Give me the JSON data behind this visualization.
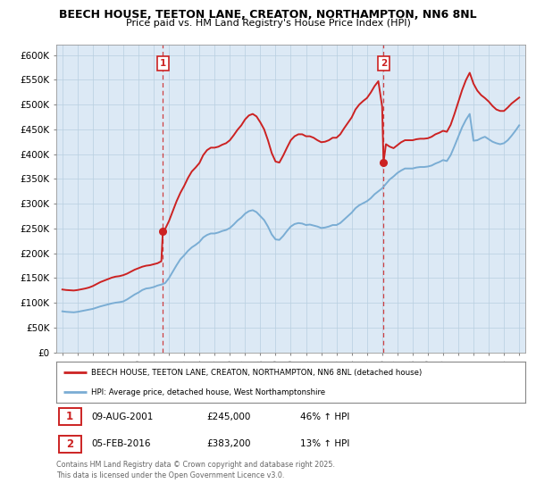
{
  "title": "BEECH HOUSE, TEETON LANE, CREATON, NORTHAMPTON, NN6 8NL",
  "subtitle": "Price paid vs. HM Land Registry's House Price Index (HPI)",
  "background_color": "#ffffff",
  "chart_bg_color": "#dce9f5",
  "grid_color": "#b8cfe0",
  "hpi_color": "#7aadd4",
  "price_color": "#cc2222",
  "ylim": [
    0,
    620000
  ],
  "ytick_step": 50000,
  "xlim_left": 1994.6,
  "xlim_right": 2025.4,
  "purchase1_date": "09-AUG-2001",
  "purchase1_price": 245000,
  "purchase1_x": 2001.6,
  "purchase1_pct": "46%",
  "purchase2_date": "05-FEB-2016",
  "purchase2_price": 383200,
  "purchase2_x": 2016.09,
  "purchase2_pct": "13%",
  "legend_line1": "BEECH HOUSE, TEETON LANE, CREATON, NORTHAMPTON, NN6 8NL (detached house)",
  "legend_line2": "HPI: Average price, detached house, West Northamptonshire",
  "footnote": "Contains HM Land Registry data © Crown copyright and database right 2025.\nThis data is licensed under the Open Government Licence v3.0.",
  "hpi_data": [
    [
      1995.0,
      83000
    ],
    [
      1995.25,
      82000
    ],
    [
      1995.5,
      81500
    ],
    [
      1995.75,
      81000
    ],
    [
      1996.0,
      82000
    ],
    [
      1996.25,
      83500
    ],
    [
      1996.5,
      85000
    ],
    [
      1996.75,
      86500
    ],
    [
      1997.0,
      88000
    ],
    [
      1997.25,
      90500
    ],
    [
      1997.5,
      93000
    ],
    [
      1997.75,
      95000
    ],
    [
      1998.0,
      97000
    ],
    [
      1998.25,
      99000
    ],
    [
      1998.5,
      100500
    ],
    [
      1998.75,
      101500
    ],
    [
      1999.0,
      103000
    ],
    [
      1999.25,
      107000
    ],
    [
      1999.5,
      112000
    ],
    [
      1999.75,
      117000
    ],
    [
      2000.0,
      121000
    ],
    [
      2000.25,
      126000
    ],
    [
      2000.5,
      129000
    ],
    [
      2000.75,
      130000
    ],
    [
      2001.0,
      132000
    ],
    [
      2001.25,
      135000
    ],
    [
      2001.5,
      137000
    ],
    [
      2001.75,
      140000
    ],
    [
      2002.0,
      150000
    ],
    [
      2002.25,
      163000
    ],
    [
      2002.5,
      176000
    ],
    [
      2002.75,
      188000
    ],
    [
      2003.0,
      196000
    ],
    [
      2003.25,
      205000
    ],
    [
      2003.5,
      212000
    ],
    [
      2003.75,
      217000
    ],
    [
      2004.0,
      223000
    ],
    [
      2004.25,
      232000
    ],
    [
      2004.5,
      237000
    ],
    [
      2004.75,
      240000
    ],
    [
      2005.0,
      240000
    ],
    [
      2005.25,
      242000
    ],
    [
      2005.5,
      245000
    ],
    [
      2005.75,
      247000
    ],
    [
      2006.0,
      251000
    ],
    [
      2006.25,
      258000
    ],
    [
      2006.5,
      266000
    ],
    [
      2006.75,
      272000
    ],
    [
      2007.0,
      280000
    ],
    [
      2007.25,
      285000
    ],
    [
      2007.5,
      287000
    ],
    [
      2007.75,
      283000
    ],
    [
      2008.0,
      275000
    ],
    [
      2008.25,
      267000
    ],
    [
      2008.5,
      254000
    ],
    [
      2008.75,
      238000
    ],
    [
      2009.0,
      228000
    ],
    [
      2009.25,
      227000
    ],
    [
      2009.5,
      235000
    ],
    [
      2009.75,
      245000
    ],
    [
      2010.0,
      254000
    ],
    [
      2010.25,
      259000
    ],
    [
      2010.5,
      261000
    ],
    [
      2010.75,
      260000
    ],
    [
      2011.0,
      257000
    ],
    [
      2011.25,
      258000
    ],
    [
      2011.5,
      256000
    ],
    [
      2011.75,
      254000
    ],
    [
      2012.0,
      251000
    ],
    [
      2012.25,
      252000
    ],
    [
      2012.5,
      254000
    ],
    [
      2012.75,
      257000
    ],
    [
      2013.0,
      257000
    ],
    [
      2013.25,
      261000
    ],
    [
      2013.5,
      268000
    ],
    [
      2013.75,
      275000
    ],
    [
      2014.0,
      282000
    ],
    [
      2014.25,
      291000
    ],
    [
      2014.5,
      297000
    ],
    [
      2014.75,
      301000
    ],
    [
      2015.0,
      305000
    ],
    [
      2015.25,
      311000
    ],
    [
      2015.5,
      319000
    ],
    [
      2015.75,
      325000
    ],
    [
      2016.0,
      331000
    ],
    [
      2016.25,
      340000
    ],
    [
      2016.5,
      349000
    ],
    [
      2016.75,
      355000
    ],
    [
      2017.0,
      362000
    ],
    [
      2017.25,
      367000
    ],
    [
      2017.5,
      371000
    ],
    [
      2017.75,
      371000
    ],
    [
      2018.0,
      371000
    ],
    [
      2018.25,
      373000
    ],
    [
      2018.5,
      374000
    ],
    [
      2018.75,
      374000
    ],
    [
      2019.0,
      375000
    ],
    [
      2019.25,
      377000
    ],
    [
      2019.5,
      381000
    ],
    [
      2019.75,
      384000
    ],
    [
      2020.0,
      388000
    ],
    [
      2020.25,
      386000
    ],
    [
      2020.5,
      398000
    ],
    [
      2020.75,
      416000
    ],
    [
      2021.0,
      435000
    ],
    [
      2021.25,
      454000
    ],
    [
      2021.5,
      469000
    ],
    [
      2021.75,
      481000
    ],
    [
      2022.0,
      427000
    ],
    [
      2022.25,
      428000
    ],
    [
      2022.5,
      432000
    ],
    [
      2022.75,
      435000
    ],
    [
      2023.0,
      430000
    ],
    [
      2023.25,
      425000
    ],
    [
      2023.5,
      422000
    ],
    [
      2023.75,
      420000
    ],
    [
      2024.0,
      422000
    ],
    [
      2024.25,
      428000
    ],
    [
      2024.5,
      437000
    ],
    [
      2024.75,
      447000
    ],
    [
      2025.0,
      458000
    ]
  ],
  "price_data": [
    [
      1995.0,
      127000
    ],
    [
      1995.25,
      126000
    ],
    [
      1995.5,
      125500
    ],
    [
      1995.75,
      125000
    ],
    [
      1996.0,
      126000
    ],
    [
      1996.25,
      127500
    ],
    [
      1996.5,
      129000
    ],
    [
      1996.75,
      131000
    ],
    [
      1997.0,
      134000
    ],
    [
      1997.25,
      138000
    ],
    [
      1997.5,
      142000
    ],
    [
      1997.75,
      145000
    ],
    [
      1998.0,
      148000
    ],
    [
      1998.25,
      151000
    ],
    [
      1998.5,
      153000
    ],
    [
      1998.75,
      154000
    ],
    [
      1999.0,
      156000
    ],
    [
      1999.25,
      159000
    ],
    [
      1999.5,
      163000
    ],
    [
      1999.75,
      167000
    ],
    [
      2000.0,
      170000
    ],
    [
      2000.25,
      173000
    ],
    [
      2000.5,
      175000
    ],
    [
      2000.75,
      176000
    ],
    [
      2001.0,
      178000
    ],
    [
      2001.25,
      180000
    ],
    [
      2001.5,
      184000
    ],
    [
      2001.6,
      245000
    ],
    [
      2001.75,
      249000
    ],
    [
      2002.0,
      265000
    ],
    [
      2002.25,
      285000
    ],
    [
      2002.5,
      305000
    ],
    [
      2002.75,
      322000
    ],
    [
      2003.0,
      336000
    ],
    [
      2003.25,
      352000
    ],
    [
      2003.5,
      365000
    ],
    [
      2003.75,
      373000
    ],
    [
      2004.0,
      382000
    ],
    [
      2004.25,
      398000
    ],
    [
      2004.5,
      408000
    ],
    [
      2004.75,
      413000
    ],
    [
      2005.0,
      413000
    ],
    [
      2005.25,
      415000
    ],
    [
      2005.5,
      419000
    ],
    [
      2005.75,
      422000
    ],
    [
      2006.0,
      428000
    ],
    [
      2006.25,
      438000
    ],
    [
      2006.5,
      449000
    ],
    [
      2006.75,
      458000
    ],
    [
      2007.0,
      470000
    ],
    [
      2007.25,
      478000
    ],
    [
      2007.5,
      481000
    ],
    [
      2007.75,
      476000
    ],
    [
      2008.0,
      464000
    ],
    [
      2008.25,
      450000
    ],
    [
      2008.5,
      428000
    ],
    [
      2008.75,
      402000
    ],
    [
      2009.0,
      385000
    ],
    [
      2009.25,
      383000
    ],
    [
      2009.5,
      397000
    ],
    [
      2009.75,
      413000
    ],
    [
      2010.0,
      428000
    ],
    [
      2010.25,
      436000
    ],
    [
      2010.5,
      440000
    ],
    [
      2010.75,
      440000
    ],
    [
      2011.0,
      436000
    ],
    [
      2011.25,
      436000
    ],
    [
      2011.5,
      433000
    ],
    [
      2011.75,
      428000
    ],
    [
      2012.0,
      424000
    ],
    [
      2012.25,
      425000
    ],
    [
      2012.5,
      428000
    ],
    [
      2012.75,
      433000
    ],
    [
      2013.0,
      433000
    ],
    [
      2013.25,
      440000
    ],
    [
      2013.5,
      452000
    ],
    [
      2013.75,
      463000
    ],
    [
      2014.0,
      474000
    ],
    [
      2014.25,
      490000
    ],
    [
      2014.5,
      500000
    ],
    [
      2014.75,
      507000
    ],
    [
      2015.0,
      513000
    ],
    [
      2015.25,
      524000
    ],
    [
      2015.5,
      537000
    ],
    [
      2015.75,
      547000
    ],
    [
      2016.0,
      496000
    ],
    [
      2016.09,
      383200
    ],
    [
      2016.25,
      420000
    ],
    [
      2016.5,
      415000
    ],
    [
      2016.75,
      412000
    ],
    [
      2017.0,
      418000
    ],
    [
      2017.25,
      424000
    ],
    [
      2017.5,
      428000
    ],
    [
      2017.75,
      428000
    ],
    [
      2018.0,
      428000
    ],
    [
      2018.25,
      430000
    ],
    [
      2018.5,
      431000
    ],
    [
      2018.75,
      431000
    ],
    [
      2019.0,
      432000
    ],
    [
      2019.25,
      435000
    ],
    [
      2019.5,
      440000
    ],
    [
      2019.75,
      443000
    ],
    [
      2020.0,
      447000
    ],
    [
      2020.25,
      445000
    ],
    [
      2020.5,
      459000
    ],
    [
      2020.75,
      481000
    ],
    [
      2021.0,
      505000
    ],
    [
      2021.25,
      529000
    ],
    [
      2021.5,
      549000
    ],
    [
      2021.75,
      564000
    ],
    [
      2022.0,
      542000
    ],
    [
      2022.25,
      528000
    ],
    [
      2022.5,
      519000
    ],
    [
      2022.75,
      513000
    ],
    [
      2023.0,
      506000
    ],
    [
      2023.25,
      497000
    ],
    [
      2023.5,
      490000
    ],
    [
      2023.75,
      487000
    ],
    [
      2024.0,
      487000
    ],
    [
      2024.25,
      494000
    ],
    [
      2024.5,
      502000
    ],
    [
      2024.75,
      508000
    ],
    [
      2025.0,
      514000
    ]
  ]
}
